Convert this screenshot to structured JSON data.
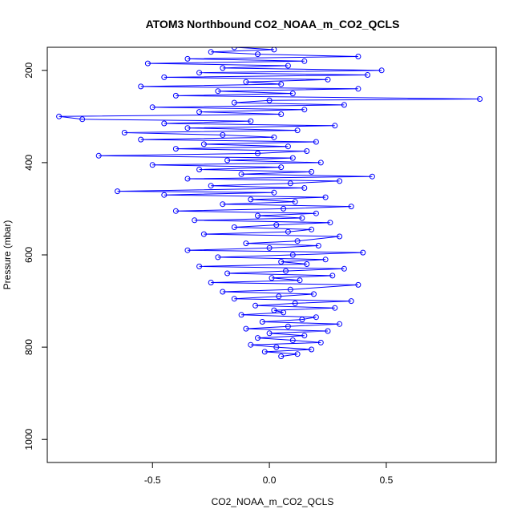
{
  "chart_data": {
    "type": "scatter",
    "title": "ATOM3 Northbound CO2_NOAA_m_CO2_QCLS",
    "xlabel": "CO2_NOAA_m_CO2_QCLS",
    "ylabel": "Pressure (mbar)",
    "xlim": [
      -0.95,
      0.97
    ],
    "ylim": [
      1050,
      150
    ],
    "y_reversed": true,
    "grid": false,
    "legend": "none",
    "x_ticks": [
      {
        "value": -0.5,
        "label": "-0.5"
      },
      {
        "value": 0.0,
        "label": "0.0"
      },
      {
        "value": 0.5,
        "label": "0.5"
      }
    ],
    "y_ticks": [
      {
        "value": 200,
        "label": "200"
      },
      {
        "value": 400,
        "label": "400"
      },
      {
        "value": 600,
        "label": "600"
      },
      {
        "value": 800,
        "label": "800"
      },
      {
        "value": 1000,
        "label": "1000"
      }
    ],
    "series_color": "#0000ff",
    "point_style": "open-circle-connected",
    "series": [
      {
        "name": "",
        "points": [
          [
            0.05,
            820
          ],
          [
            0.12,
            815
          ],
          [
            -0.02,
            810
          ],
          [
            0.18,
            805
          ],
          [
            0.03,
            800
          ],
          [
            -0.08,
            795
          ],
          [
            0.22,
            790
          ],
          [
            0.1,
            785
          ],
          [
            -0.05,
            780
          ],
          [
            0.15,
            775
          ],
          [
            0.0,
            770
          ],
          [
            0.25,
            765
          ],
          [
            -0.1,
            760
          ],
          [
            0.08,
            755
          ],
          [
            0.3,
            750
          ],
          [
            -0.03,
            745
          ],
          [
            0.14,
            740
          ],
          [
            0.2,
            735
          ],
          [
            -0.12,
            730
          ],
          [
            0.06,
            725
          ],
          [
            0.02,
            720
          ],
          [
            0.28,
            715
          ],
          [
            -0.06,
            710
          ],
          [
            0.11,
            705
          ],
          [
            0.35,
            700
          ],
          [
            -0.15,
            695
          ],
          [
            0.04,
            690
          ],
          [
            0.19,
            685
          ],
          [
            -0.2,
            680
          ],
          [
            0.09,
            675
          ],
          [
            0.38,
            665
          ],
          [
            -0.25,
            660
          ],
          [
            0.13,
            655
          ],
          [
            0.01,
            650
          ],
          [
            0.27,
            645
          ],
          [
            -0.18,
            640
          ],
          [
            0.07,
            635
          ],
          [
            0.32,
            630
          ],
          [
            -0.3,
            625
          ],
          [
            0.16,
            620
          ],
          [
            0.05,
            615
          ],
          [
            0.24,
            610
          ],
          [
            -0.22,
            605
          ],
          [
            0.1,
            600
          ],
          [
            0.4,
            595
          ],
          [
            -0.35,
            590
          ],
          [
            0.0,
            585
          ],
          [
            0.21,
            580
          ],
          [
            -0.1,
            575
          ],
          [
            0.12,
            570
          ],
          [
            0.3,
            560
          ],
          [
            -0.28,
            555
          ],
          [
            0.08,
            550
          ],
          [
            0.18,
            545
          ],
          [
            -0.15,
            540
          ],
          [
            0.03,
            535
          ],
          [
            0.26,
            530
          ],
          [
            -0.32,
            525
          ],
          [
            0.14,
            520
          ],
          [
            -0.05,
            515
          ],
          [
            0.2,
            510
          ],
          [
            -0.4,
            505
          ],
          [
            0.06,
            500
          ],
          [
            0.35,
            495
          ],
          [
            -0.2,
            490
          ],
          [
            0.11,
            485
          ],
          [
            -0.08,
            480
          ],
          [
            0.24,
            475
          ],
          [
            -0.45,
            470
          ],
          [
            0.02,
            465
          ],
          [
            -0.65,
            462
          ],
          [
            0.15,
            455
          ],
          [
            -0.25,
            450
          ],
          [
            0.09,
            445
          ],
          [
            0.3,
            440
          ],
          [
            -0.35,
            435
          ],
          [
            0.44,
            430
          ],
          [
            -0.12,
            425
          ],
          [
            0.18,
            420
          ],
          [
            -0.3,
            415
          ],
          [
            0.05,
            410
          ],
          [
            -0.5,
            405
          ],
          [
            0.22,
            400
          ],
          [
            -0.18,
            395
          ],
          [
            0.1,
            390
          ],
          [
            -0.73,
            385
          ],
          [
            -0.05,
            380
          ],
          [
            0.16,
            375
          ],
          [
            -0.4,
            370
          ],
          [
            0.08,
            365
          ],
          [
            -0.28,
            360
          ],
          [
            0.2,
            355
          ],
          [
            -0.55,
            350
          ],
          [
            0.02,
            345
          ],
          [
            -0.2,
            340
          ],
          [
            -0.62,
            335
          ],
          [
            0.12,
            330
          ],
          [
            -0.35,
            325
          ],
          [
            0.28,
            320
          ],
          [
            -0.45,
            315
          ],
          [
            -0.08,
            310
          ],
          [
            -0.8,
            306
          ],
          [
            -0.9,
            300
          ],
          [
            0.05,
            295
          ],
          [
            -0.3,
            290
          ],
          [
            0.15,
            285
          ],
          [
            -0.5,
            280
          ],
          [
            0.32,
            275
          ],
          [
            -0.15,
            270
          ],
          [
            0.0,
            265
          ],
          [
            0.9,
            262
          ],
          [
            -0.4,
            255
          ],
          [
            0.1,
            250
          ],
          [
            -0.22,
            245
          ],
          [
            0.38,
            240
          ],
          [
            -0.55,
            235
          ],
          [
            0.05,
            230
          ],
          [
            -0.1,
            225
          ],
          [
            0.25,
            220
          ],
          [
            -0.45,
            215
          ],
          [
            0.42,
            210
          ],
          [
            -0.3,
            205
          ],
          [
            0.48,
            200
          ],
          [
            -0.2,
            195
          ],
          [
            0.08,
            190
          ],
          [
            -0.52,
            185
          ],
          [
            0.15,
            180
          ],
          [
            -0.35,
            175
          ],
          [
            0.38,
            170
          ],
          [
            -0.05,
            165
          ],
          [
            -0.25,
            160
          ],
          [
            0.02,
            155
          ],
          [
            -0.15,
            150
          ]
        ]
      }
    ]
  }
}
